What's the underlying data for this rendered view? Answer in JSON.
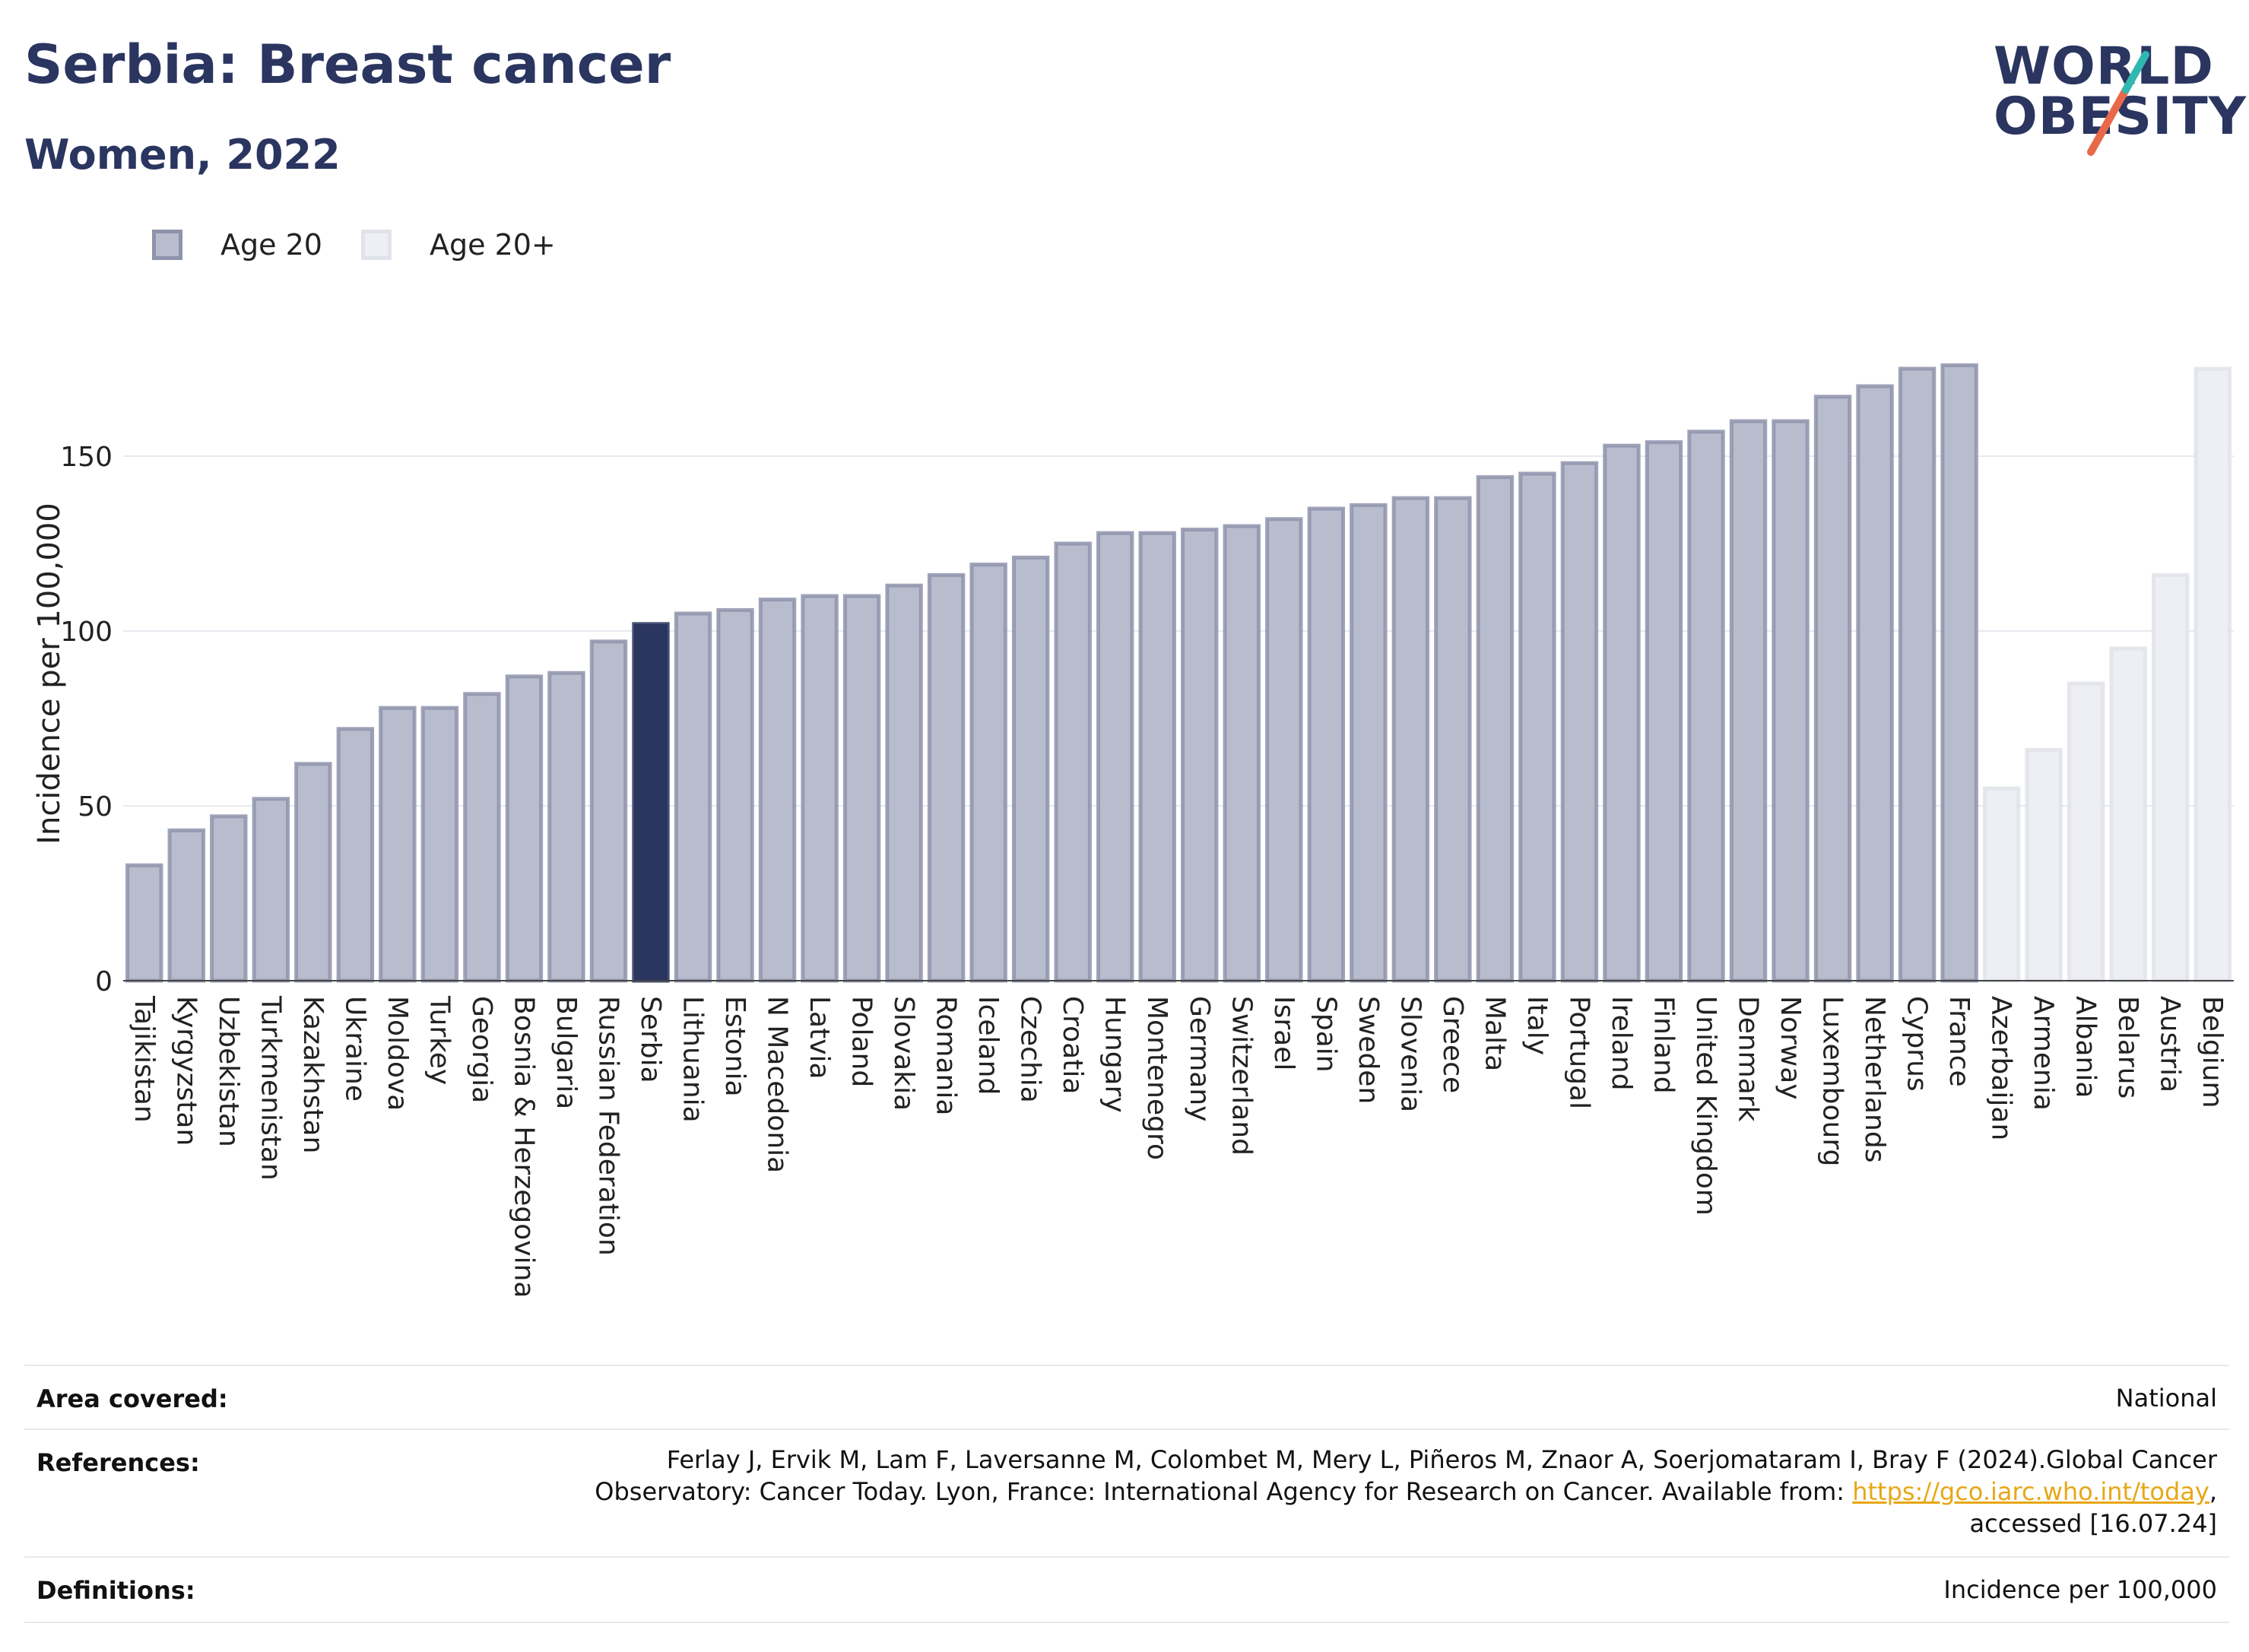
{
  "header": {
    "title": "Serbia: Breast cancer",
    "subtitle": "Women, 2022"
  },
  "logo": {
    "line1": "WORLD",
    "line2": "OBESITY",
    "accent_colors": [
      "#2fb8b0",
      "#e8694a"
    ]
  },
  "legend": {
    "items": [
      {
        "label": "Age 20",
        "color": "#b9bccd"
      },
      {
        "label": "Age 20+",
        "color": "#eeeff4"
      }
    ]
  },
  "chart_data": {
    "type": "bar",
    "ylabel": "Incidence per 100,000",
    "ylim": [
      0,
      180
    ],
    "yticks": [
      0,
      50,
      100,
      150
    ],
    "grid": true,
    "highlight": "Serbia",
    "colors": {
      "age20": "#b9bccd",
      "age20plus": "#eeeff4",
      "highlight": "#2a3560"
    },
    "categories": [
      "Tajikistan",
      "Kyrgyzstan",
      "Uzbekistan",
      "Turkmenistan",
      "Kazakhstan",
      "Ukraine",
      "Moldova",
      "Turkey",
      "Georgia",
      "Bosnia & Herzegovina",
      "Bulgaria",
      "Russian Federation",
      "Serbia",
      "Lithuania",
      "Estonia",
      "N Macedonia",
      "Latvia",
      "Poland",
      "Slovakia",
      "Romania",
      "Iceland",
      "Czechia",
      "Croatia",
      "Hungary",
      "Montenegro",
      "Germany",
      "Switzerland",
      "Israel",
      "Spain",
      "Sweden",
      "Slovenia",
      "Greece",
      "Malta",
      "Italy",
      "Portugal",
      "Ireland",
      "Finland",
      "United Kingdom",
      "Denmark",
      "Norway",
      "Luxembourg",
      "Netherlands",
      "Cyprus",
      "France",
      "Azerbaijan",
      "Armenia",
      "Albania",
      "Belarus",
      "Austria",
      "Belgium"
    ],
    "values": [
      33,
      43,
      47,
      52,
      62,
      72,
      78,
      78,
      82,
      87,
      88,
      97,
      102,
      105,
      106,
      109,
      110,
      110,
      113,
      116,
      119,
      121,
      125,
      128,
      128,
      129,
      130,
      132,
      135,
      136,
      138,
      138,
      144,
      145,
      148,
      153,
      154,
      157,
      160,
      160,
      167,
      170,
      175,
      176,
      55,
      66,
      85,
      95,
      116,
      175
    ],
    "groups": [
      "age20",
      "age20",
      "age20",
      "age20",
      "age20",
      "age20",
      "age20",
      "age20",
      "age20",
      "age20",
      "age20",
      "age20",
      "age20",
      "age20",
      "age20",
      "age20",
      "age20",
      "age20",
      "age20",
      "age20",
      "age20",
      "age20",
      "age20",
      "age20",
      "age20",
      "age20",
      "age20",
      "age20",
      "age20",
      "age20",
      "age20",
      "age20",
      "age20",
      "age20",
      "age20",
      "age20",
      "age20",
      "age20",
      "age20",
      "age20",
      "age20",
      "age20",
      "age20",
      "age20",
      "age20plus",
      "age20plus",
      "age20plus",
      "age20plus",
      "age20plus",
      "age20plus"
    ]
  },
  "info": {
    "area_label": "Area covered:",
    "area_value": "National",
    "refs_label": "References:",
    "refs_line1": "Ferlay J, Ervik M, Lam F, Laversanne M, Colombet M, Mery L, Piñeros M, Znaor A, Soerjomataram I, Bray F (2024).Global Cancer",
    "refs_line2_pre": "Observatory: Cancer Today. Lyon, France: International Agency for Research on Cancer. Available from: ",
    "refs_link": "https://gco.iarc.who.int/today",
    "refs_line2_post": ",",
    "refs_line3": "accessed [16.07.24]",
    "defs_label": "Definitions:",
    "defs_value": "Incidence per 100,000"
  }
}
